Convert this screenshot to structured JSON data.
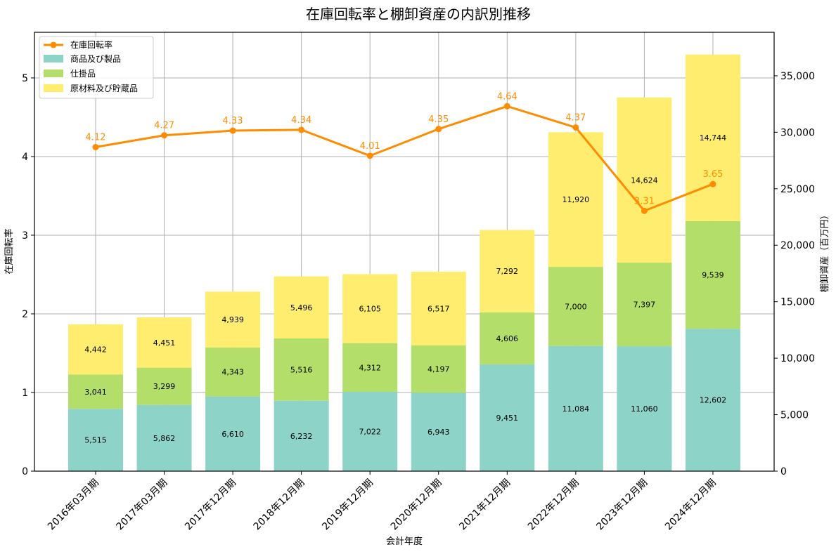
{
  "chart_data": {
    "type": "bar",
    "title": "在庫回転率と棚卸資産の内訳別推移",
    "xlabel": "会計年度",
    "ylabel_left": "在庫回転率",
    "ylabel_right": "棚卸資産（百万円）",
    "categories": [
      "2016年03月期",
      "2017年03月期",
      "2017年12月期",
      "2018年12月期",
      "2019年12月期",
      "2020年12月期",
      "2021年12月期",
      "2022年12月期",
      "2023年12月期",
      "2024年12月期"
    ],
    "stacked_series": [
      {
        "name": "商品及び製品",
        "color": "#8dd3c7",
        "values": [
          5515,
          5862,
          6610,
          6232,
          7022,
          6943,
          9451,
          11084,
          11060,
          12602
        ]
      },
      {
        "name": "仕掛品",
        "color": "#b3de69",
        "values": [
          3041,
          3299,
          4343,
          5516,
          4312,
          4197,
          4606,
          7000,
          7397,
          9539
        ]
      },
      {
        "name": "原材料及び貯蔵品",
        "color": "#ffed6f",
        "values": [
          4442,
          4451,
          4939,
          5496,
          6105,
          6517,
          7292,
          11920,
          14624,
          14744
        ]
      }
    ],
    "line_series": {
      "name": "在庫回転率",
      "color": "#ff8c00",
      "values": [
        4.12,
        4.27,
        4.33,
        4.34,
        4.01,
        4.35,
        4.64,
        4.37,
        3.31,
        3.65
      ]
    },
    "left_ylim": [
      0,
      5.58
    ],
    "right_ylim": [
      0,
      38850
    ],
    "left_ticks": [
      0,
      1,
      2,
      3,
      4,
      5
    ],
    "right_ticks": [
      0,
      5000,
      10000,
      15000,
      20000,
      25000,
      30000,
      35000
    ],
    "right_tick_labels": [
      "0",
      "5,000",
      "10,000",
      "15,000",
      "20,000",
      "25,000",
      "30,000",
      "35,000"
    ],
    "legend_position": "upper-left",
    "grid": true
  }
}
